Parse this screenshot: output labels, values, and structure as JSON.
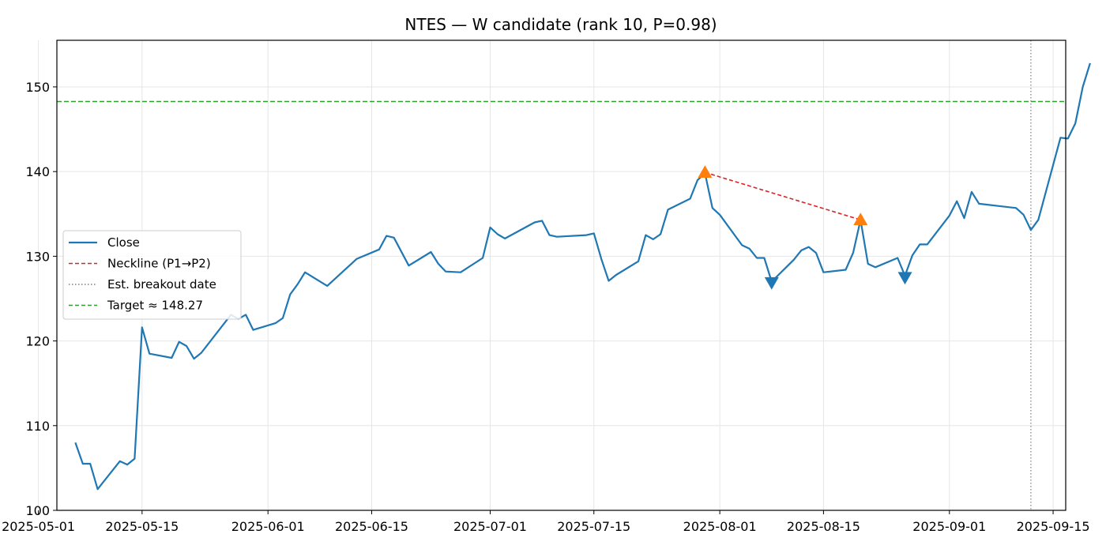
{
  "chart_data": {
    "type": "line",
    "title": "NTES — W candidate (rank 10, P=0.98)",
    "xlabel": "",
    "ylabel": "",
    "xlim": [
      "2025-05-05",
      "2025-09-16"
    ],
    "ylim": [
      100,
      155.5
    ],
    "x_ticks": [
      "2025-05-01",
      "2025-05-15",
      "2025-06-01",
      "2025-06-15",
      "2025-07-01",
      "2025-07-15",
      "2025-08-01",
      "2025-08-15",
      "2025-09-01",
      "2025-09-15"
    ],
    "y_ticks": [
      100,
      110,
      120,
      130,
      140,
      150
    ],
    "grid": true,
    "legend_position": "center-left",
    "series": [
      {
        "name": "Close",
        "color": "#1f77b4",
        "style": "solid",
        "points": [
          [
            "2025-05-06",
            108.0
          ],
          [
            "2025-05-07",
            105.5
          ],
          [
            "2025-05-08",
            105.5
          ],
          [
            "2025-05-09",
            102.5
          ],
          [
            "2025-05-12",
            105.8
          ],
          [
            "2025-05-13",
            105.4
          ],
          [
            "2025-05-14",
            106.1
          ],
          [
            "2025-05-15",
            121.6
          ],
          [
            "2025-05-16",
            118.5
          ],
          [
            "2025-05-19",
            118.0
          ],
          [
            "2025-05-20",
            119.9
          ],
          [
            "2025-05-21",
            119.4
          ],
          [
            "2025-05-22",
            117.9
          ],
          [
            "2025-05-23",
            118.6
          ],
          [
            "2025-05-27",
            123.1
          ],
          [
            "2025-05-28",
            122.6
          ],
          [
            "2025-05-29",
            123.1
          ],
          [
            "2025-05-30",
            121.3
          ],
          [
            "2025-06-02",
            122.1
          ],
          [
            "2025-06-03",
            122.7
          ],
          [
            "2025-06-04",
            125.5
          ],
          [
            "2025-06-05",
            126.7
          ],
          [
            "2025-06-06",
            128.1
          ],
          [
            "2025-06-09",
            126.5
          ],
          [
            "2025-06-10",
            127.3
          ],
          [
            "2025-06-11",
            128.1
          ],
          [
            "2025-06-12",
            128.9
          ],
          [
            "2025-06-13",
            129.7
          ],
          [
            "2025-06-16",
            130.8
          ],
          [
            "2025-06-17",
            132.4
          ],
          [
            "2025-06-18",
            132.2
          ],
          [
            "2025-06-20",
            128.9
          ],
          [
            "2025-06-23",
            130.5
          ],
          [
            "2025-06-24",
            129.1
          ],
          [
            "2025-06-25",
            128.2
          ],
          [
            "2025-06-27",
            128.1
          ],
          [
            "2025-06-30",
            129.8
          ],
          [
            "2025-07-01",
            133.4
          ],
          [
            "2025-07-02",
            132.6
          ],
          [
            "2025-07-03",
            132.1
          ],
          [
            "2025-07-07",
            134.0
          ],
          [
            "2025-07-08",
            134.2
          ],
          [
            "2025-07-09",
            132.5
          ],
          [
            "2025-07-10",
            132.3
          ],
          [
            "2025-07-14",
            132.5
          ],
          [
            "2025-07-15",
            132.7
          ],
          [
            "2025-07-16",
            129.7
          ],
          [
            "2025-07-17",
            127.1
          ],
          [
            "2025-07-18",
            127.8
          ],
          [
            "2025-07-21",
            129.4
          ],
          [
            "2025-07-22",
            132.5
          ],
          [
            "2025-07-23",
            132.0
          ],
          [
            "2025-07-24",
            132.6
          ],
          [
            "2025-07-25",
            135.5
          ],
          [
            "2025-07-28",
            136.8
          ],
          [
            "2025-07-29",
            139.0
          ],
          [
            "2025-07-30",
            139.8
          ],
          [
            "2025-07-31",
            135.7
          ],
          [
            "2025-08-01",
            134.9
          ],
          [
            "2025-08-04",
            131.3
          ],
          [
            "2025-08-05",
            130.9
          ],
          [
            "2025-08-06",
            129.8
          ],
          [
            "2025-08-07",
            129.8
          ],
          [
            "2025-08-08",
            127.0
          ],
          [
            "2025-08-11",
            129.6
          ],
          [
            "2025-08-12",
            130.7
          ],
          [
            "2025-08-13",
            131.1
          ],
          [
            "2025-08-14",
            130.4
          ],
          [
            "2025-08-15",
            128.1
          ],
          [
            "2025-08-18",
            128.4
          ],
          [
            "2025-08-19",
            130.4
          ],
          [
            "2025-08-20",
            134.3
          ],
          [
            "2025-08-21",
            129.1
          ],
          [
            "2025-08-22",
            128.7
          ],
          [
            "2025-08-25",
            129.8
          ],
          [
            "2025-08-26",
            127.7
          ],
          [
            "2025-08-27",
            130.1
          ],
          [
            "2025-08-28",
            131.4
          ],
          [
            "2025-08-29",
            131.4
          ],
          [
            "2025-09-01",
            134.8
          ],
          [
            "2025-09-02",
            136.5
          ],
          [
            "2025-09-03",
            134.5
          ],
          [
            "2025-09-04",
            137.6
          ],
          [
            "2025-09-05",
            136.2
          ],
          [
            "2025-09-10",
            135.7
          ],
          [
            "2025-09-11",
            134.9
          ],
          [
            "2025-09-12",
            133.1
          ],
          [
            "2025-09-13",
            134.3
          ],
          [
            "2025-09-16",
            144.0
          ],
          [
            "2025-09-17",
            143.9
          ],
          [
            "2025-09-18",
            145.7
          ],
          [
            "2025-09-19",
            150.0
          ],
          [
            "2025-09-20",
            152.8
          ]
        ]
      },
      {
        "name": "Neckline (P1→P2)",
        "color": "#d62728",
        "style": "dashed",
        "points": [
          [
            "2025-07-30",
            139.9
          ],
          [
            "2025-08-20",
            134.3
          ]
        ]
      },
      {
        "name": "Est. breakout date",
        "color": "#808080",
        "style": "dotted",
        "x": "2025-09-12"
      },
      {
        "name": "Target ≈ 148.27",
        "color": "#2ca02c",
        "style": "dashed",
        "y": 148.27
      }
    ],
    "markers": [
      {
        "type": "peak",
        "shape": "triangle-up",
        "color": "#ff7f0e",
        "x": "2025-07-30",
        "y": 139.9
      },
      {
        "type": "peak",
        "shape": "triangle-up",
        "color": "#ff7f0e",
        "x": "2025-08-20",
        "y": 134.3
      },
      {
        "type": "trough",
        "shape": "triangle-down",
        "color": "#1f77b4",
        "x": "2025-08-08",
        "y": 126.9
      },
      {
        "type": "trough",
        "shape": "triangle-down",
        "color": "#1f77b4",
        "x": "2025-08-26",
        "y": 127.5
      }
    ]
  }
}
